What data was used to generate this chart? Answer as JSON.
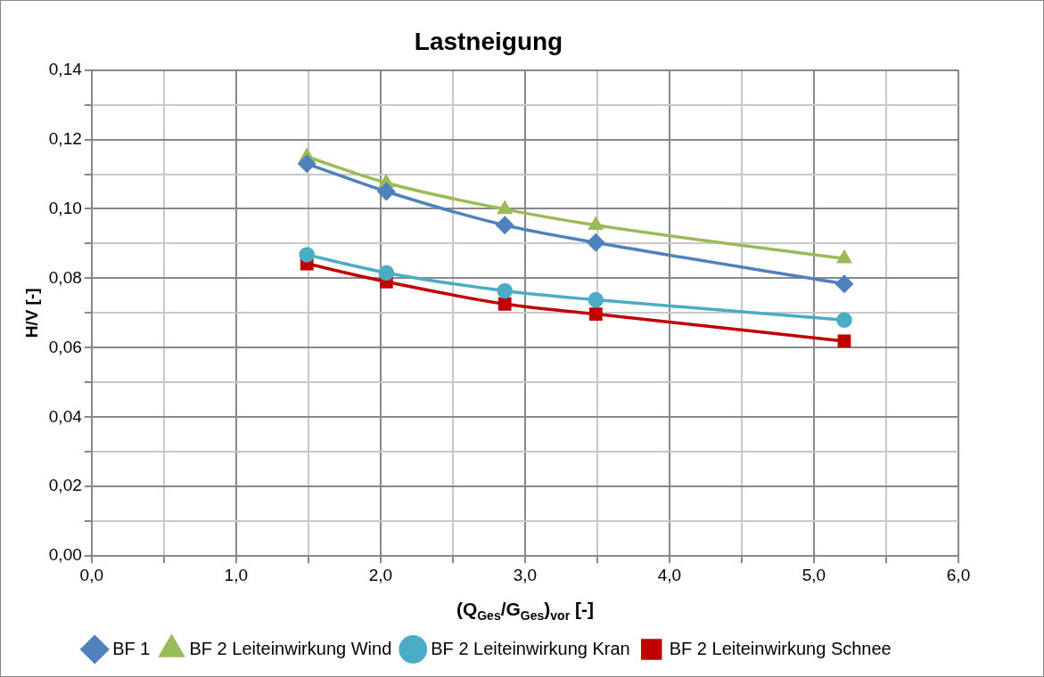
{
  "chart_data": {
    "type": "line",
    "title": "Lastneigung",
    "xlabel": "(Q$_{Ges}$/G$_{Ges}$)$_{vor}$ [-]",
    "ylabel": "H/V [-]",
    "x": [
      1.49,
      2.04,
      2.86,
      3.49,
      5.21
    ],
    "series": [
      {
        "name": "BF 1",
        "color": "#4f81bd",
        "marker": "diamond",
        "values": [
          0.113,
          0.105,
          0.0953,
          0.0903,
          0.0784
        ]
      },
      {
        "name": "BF 2 Leiteinwirkung Wind",
        "color": "#9bbb59",
        "marker": "triangle",
        "values": [
          0.115,
          0.1075,
          0.0999,
          0.0953,
          0.0857
        ]
      },
      {
        "name": "BF 2 Leiteinwirkung Kran",
        "color": "#4bacc6",
        "marker": "circle",
        "values": [
          0.0868,
          0.0816,
          0.0764,
          0.0738,
          0.068
        ]
      },
      {
        "name": "BF 2 Leiteinwirkung Schnee",
        "color": "#c00000",
        "marker": "square",
        "values": [
          0.0842,
          0.079,
          0.0726,
          0.0697,
          0.0619
        ]
      }
    ],
    "xlim": [
      0,
      6
    ],
    "xticks": [
      {
        "value": 0,
        "label": "0,0"
      },
      {
        "value": 0.5,
        "label": null
      },
      {
        "value": 1,
        "label": "1,0"
      },
      {
        "value": 1.5,
        "label": null
      },
      {
        "value": 2,
        "label": "2,0"
      },
      {
        "value": 2.5,
        "label": null
      },
      {
        "value": 3,
        "label": "3,0"
      },
      {
        "value": 3.5,
        "label": null
      },
      {
        "value": 4,
        "label": "4,0"
      },
      {
        "value": 4.5,
        "label": null
      },
      {
        "value": 5,
        "label": "5,0"
      },
      {
        "value": 5.5,
        "label": null
      },
      {
        "value": 6,
        "label": "6,0"
      }
    ],
    "ylim": [
      0,
      0.14
    ],
    "yticks": [
      {
        "value": 0,
        "label": "0,00"
      },
      {
        "value": 0.01,
        "label": null
      },
      {
        "value": 0.02,
        "label": "0,02"
      },
      {
        "value": 0.03,
        "label": null
      },
      {
        "value": 0.04,
        "label": "0,04"
      },
      {
        "value": 0.05,
        "label": null
      },
      {
        "value": 0.06,
        "label": "0,06"
      },
      {
        "value": 0.07,
        "label": null
      },
      {
        "value": 0.08,
        "label": "0,08"
      },
      {
        "value": 0.09,
        "label": null
      },
      {
        "value": 0.1,
        "label": "0,10"
      },
      {
        "value": 0.11,
        "label": null
      },
      {
        "value": 0.12,
        "label": "0,12"
      },
      {
        "value": 0.13,
        "label": null
      },
      {
        "value": 0.14,
        "label": "0,14"
      }
    ],
    "grid": true,
    "legend": "bottom",
    "line_style": "solid"
  }
}
